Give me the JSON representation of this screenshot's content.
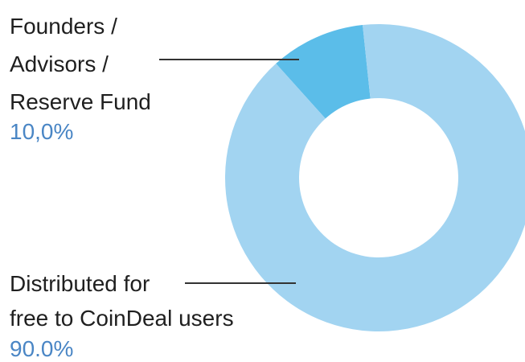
{
  "chart_data": {
    "type": "donut",
    "categories": [
      [
        "Founders /",
        "Advisors /",
        "Reserve Fund"
      ],
      [
        "Distributed for",
        "free to CoinDeal users"
      ]
    ],
    "values": [
      10,
      90
    ],
    "value_labels": [
      "10,0%",
      "90.0%"
    ],
    "colors": [
      "#5bbde9",
      "#a2d4f1"
    ]
  }
}
